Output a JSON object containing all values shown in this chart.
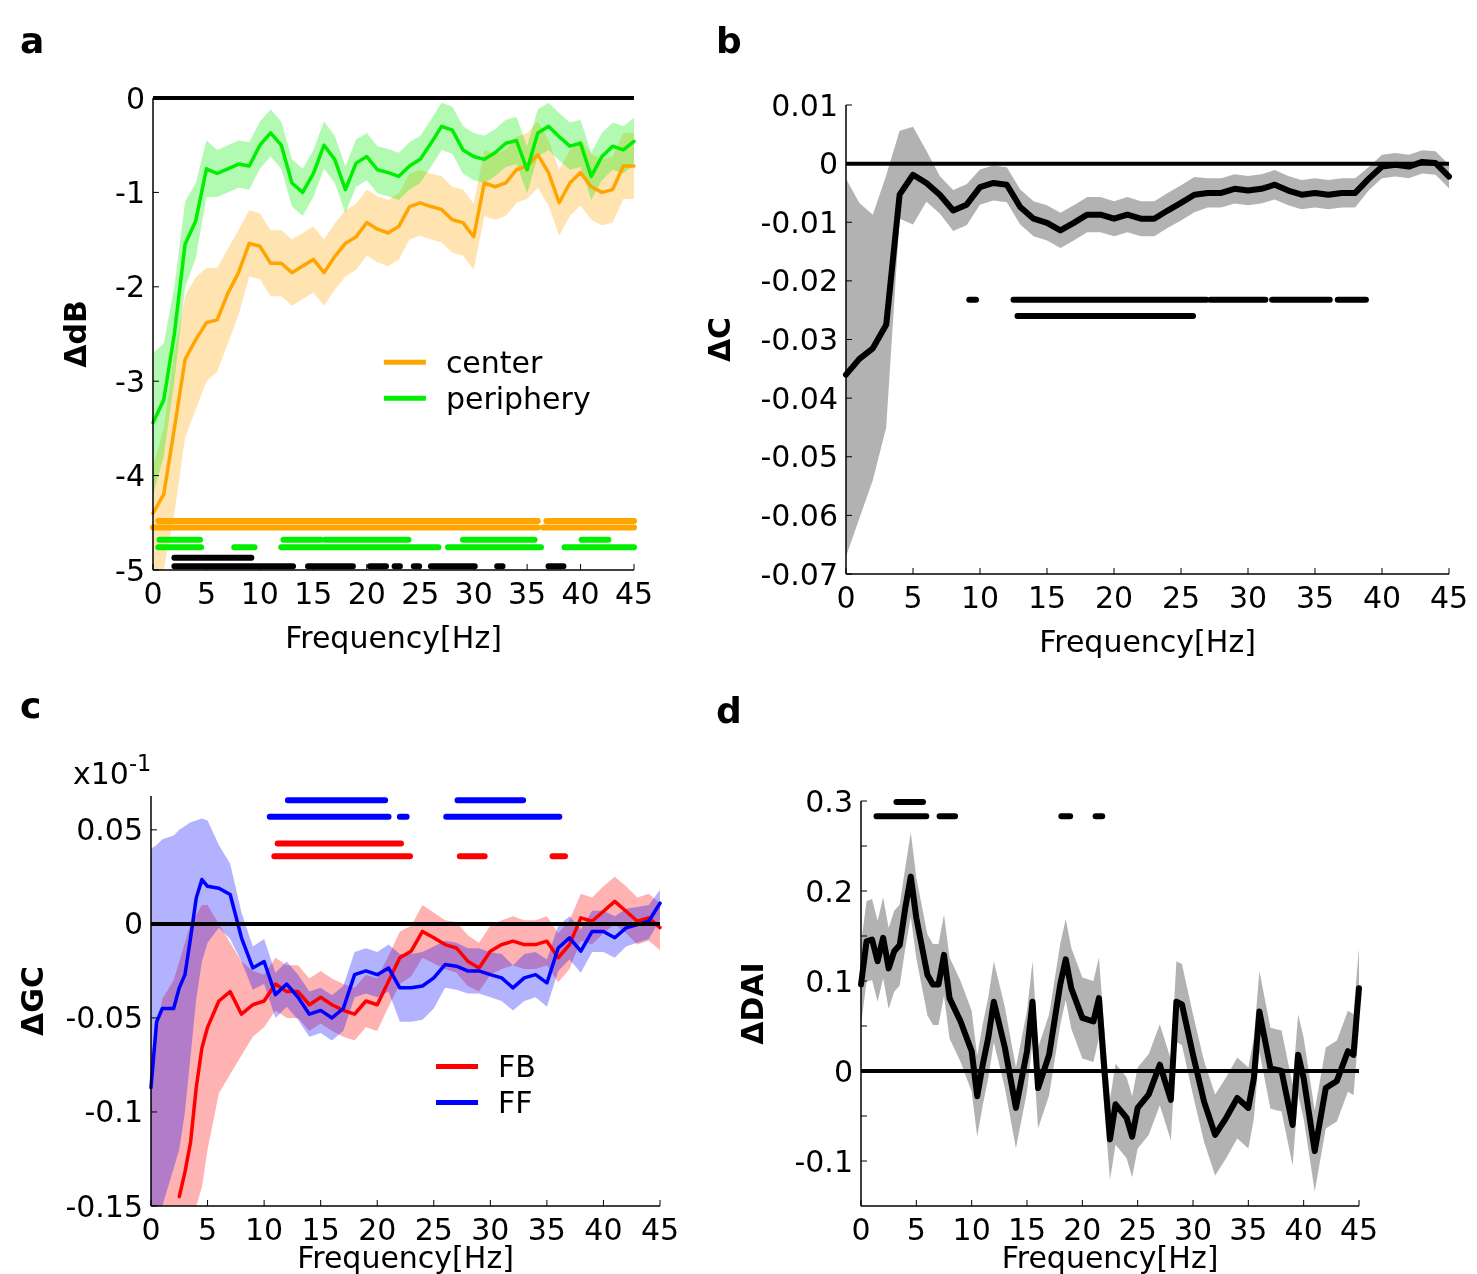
{
  "chart_data": [
    {
      "type": "line",
      "title": "a",
      "xlabel": "Frequency[Hz]",
      "ylabel": "ΔdB",
      "xlim": [
        0,
        45
      ],
      "ylim": [
        -5,
        0
      ],
      "xticks": [
        0,
        5,
        10,
        15,
        20,
        25,
        30,
        35,
        40,
        45
      ],
      "yticks": [
        0,
        -1,
        -2,
        -3,
        -4,
        -5
      ],
      "legend": "right",
      "ref_lines": [
        {
          "axis": "y",
          "value": 0,
          "color": "#000000"
        }
      ],
      "series": [
        {
          "name": "center",
          "color": "#ffa500",
          "x": [
            0,
            1,
            2,
            3,
            4,
            5,
            6,
            7,
            8,
            9,
            10,
            11,
            12,
            13,
            14,
            15,
            16,
            17,
            18,
            19,
            20,
            21,
            22,
            23,
            24,
            25,
            26,
            27,
            28,
            29,
            30,
            31,
            32,
            33,
            34,
            35,
            36,
            37,
            38,
            39,
            40,
            41,
            42,
            43,
            44,
            45
          ],
          "values": [
            -4.4,
            -4.2,
            -3.5,
            -2.77,
            -2.56,
            -2.38,
            -2.35,
            -2.07,
            -1.85,
            -1.54,
            -1.57,
            -1.75,
            -1.75,
            -1.85,
            -1.78,
            -1.71,
            -1.85,
            -1.68,
            -1.54,
            -1.47,
            -1.32,
            -1.39,
            -1.43,
            -1.36,
            -1.15,
            -1.11,
            -1.15,
            -1.18,
            -1.29,
            -1.32,
            -1.47,
            -0.9,
            -0.94,
            -0.9,
            -0.76,
            -0.72,
            -0.6,
            -0.79,
            -1.11,
            -0.9,
            -0.79,
            -0.94,
            -1.0,
            -0.97,
            -0.72,
            -0.72
          ],
          "lower": [
            -5,
            -5,
            -4.4,
            -3.6,
            -3.3,
            -3.0,
            -2.9,
            -2.6,
            -2.3,
            -1.89,
            -1.92,
            -2.1,
            -2.1,
            -2.2,
            -2.13,
            -2.06,
            -2.2,
            -2.03,
            -1.89,
            -1.82,
            -1.67,
            -1.74,
            -1.78,
            -1.71,
            -1.5,
            -1.46,
            -1.5,
            -1.53,
            -1.64,
            -1.67,
            -1.82,
            -1.25,
            -1.29,
            -1.25,
            -1.11,
            -1.07,
            -0.95,
            -1.14,
            -1.46,
            -1.25,
            -1.14,
            -1.29,
            -1.35,
            -1.32,
            -1.07,
            -1.07
          ],
          "upper": [
            -3.9,
            -3.5,
            -2.7,
            -2.1,
            -1.9,
            -1.8,
            -1.8,
            -1.6,
            -1.4,
            -1.19,
            -1.22,
            -1.4,
            -1.4,
            -1.5,
            -1.43,
            -1.36,
            -1.5,
            -1.33,
            -1.19,
            -1.12,
            -0.97,
            -1.04,
            -1.08,
            -1.01,
            -0.8,
            -0.76,
            -0.8,
            -0.83,
            -0.94,
            -0.97,
            -1.12,
            -0.55,
            -0.59,
            -0.55,
            -0.41,
            -0.37,
            -0.25,
            -0.44,
            -0.76,
            -0.55,
            -0.44,
            -0.59,
            -0.65,
            -0.62,
            -0.37,
            -0.37
          ]
        },
        {
          "name": "periphery",
          "color": "#00ee00",
          "x": [
            0,
            1,
            2,
            3,
            4,
            5,
            6,
            7,
            8,
            9,
            10,
            11,
            12,
            13,
            14,
            15,
            16,
            17,
            18,
            19,
            20,
            21,
            22,
            23,
            24,
            25,
            26,
            27,
            28,
            29,
            30,
            31,
            32,
            33,
            34,
            35,
            36,
            37,
            38,
            39,
            40,
            41,
            42,
            43,
            44,
            45
          ],
          "values": [
            -3.44,
            -3.2,
            -2.5,
            -1.55,
            -1.3,
            -0.75,
            -0.8,
            -0.75,
            -0.7,
            -0.72,
            -0.5,
            -0.37,
            -0.5,
            -0.9,
            -1.0,
            -0.8,
            -0.5,
            -0.65,
            -0.97,
            -0.69,
            -0.62,
            -0.76,
            -0.79,
            -0.83,
            -0.72,
            -0.65,
            -0.48,
            -0.3,
            -0.34,
            -0.55,
            -0.62,
            -0.65,
            -0.58,
            -0.48,
            -0.45,
            -0.76,
            -0.37,
            -0.3,
            -0.41,
            -0.51,
            -0.48,
            -0.83,
            -0.62,
            -0.51,
            -0.55,
            -0.46
          ],
          "lower": [
            -4.2,
            -3.8,
            -3.0,
            -2.0,
            -1.7,
            -1.05,
            -1.05,
            -1.0,
            -0.95,
            -0.97,
            -0.75,
            -0.62,
            -0.75,
            -1.15,
            -1.25,
            -1.05,
            -0.75,
            -0.9,
            -1.22,
            -0.94,
            -0.87,
            -1.01,
            -1.04,
            -1.08,
            -0.97,
            -0.9,
            -0.73,
            -0.55,
            -0.59,
            -0.8,
            -0.87,
            -0.9,
            -0.83,
            -0.73,
            -0.7,
            -1.01,
            -0.62,
            -0.55,
            -0.66,
            -0.76,
            -0.73,
            -1.08,
            -0.87,
            -0.76,
            -0.8,
            -0.71
          ],
          "upper": [
            -2.7,
            -2.6,
            -2.0,
            -1.1,
            -0.9,
            -0.45,
            -0.55,
            -0.5,
            -0.45,
            -0.47,
            -0.25,
            -0.12,
            -0.25,
            -0.65,
            -0.75,
            -0.55,
            -0.25,
            -0.4,
            -0.72,
            -0.44,
            -0.37,
            -0.51,
            -0.54,
            -0.58,
            -0.47,
            -0.4,
            -0.23,
            -0.05,
            -0.09,
            -0.3,
            -0.37,
            -0.4,
            -0.33,
            -0.23,
            -0.2,
            -0.51,
            -0.12,
            -0.05,
            -0.16,
            -0.26,
            -0.23,
            -0.58,
            -0.37,
            -0.26,
            -0.3,
            -0.21
          ]
        },
        {
          "color": "#ffa500",
          "x": [
            0.5,
            36,
            36.4,
            36.8,
            45
          ],
          "values": [
            -4.48,
            -4.48,
            null,
            -4.48,
            -4.48
          ]
        },
        {
          "color": "#ffa500",
          "x": [
            0,
            36,
            36.2,
            36.5,
            45
          ],
          "values": [
            -4.55,
            -4.55,
            null,
            -4.55,
            -4.55
          ]
        },
        {
          "color": "#00ee00",
          "x": [
            0.6,
            4.4,
            5,
            12.2,
            15.7,
            15.9,
            16.1,
            23.9,
            25,
            29,
            35.7,
            37,
            40.1,
            42.6
          ],
          "values": [
            -4.68,
            -4.68,
            null,
            -4.68,
            -4.68,
            null,
            -4.68,
            -4.68,
            null,
            -4.68,
            -4.68,
            null,
            -4.68,
            -4.68
          ]
        },
        {
          "color": "#00ee00",
          "x": [
            0.5,
            4.5,
            5,
            7.6,
            9.5,
            10,
            12,
            26.7,
            27,
            27.6,
            36.3,
            37,
            38.5,
            45
          ],
          "values": [
            -4.76,
            -4.76,
            null,
            -4.76,
            -4.76,
            null,
            -4.76,
            -4.76,
            null,
            -4.76,
            -4.76,
            null,
            -4.76,
            -4.76
          ]
        },
        {
          "color": "#000000",
          "x": [
            2,
            9.2
          ],
          "values": [
            -4.87,
            -4.87
          ]
        },
        {
          "color": "#000000",
          "x": [
            2,
            13.1,
            13.5,
            14.5,
            18.7,
            19,
            20.3,
            21.8,
            22,
            22.6,
            23.1,
            23.8,
            24.4,
            24.9,
            25.3,
            26,
            30.1,
            31,
            32.2,
            32.7,
            33.5,
            37,
            38.4
          ],
          "values": [
            -4.96,
            -4.96,
            null,
            -4.96,
            -4.96,
            null,
            -4.96,
            -4.96,
            null,
            -4.96,
            -4.96,
            null,
            -4.96,
            -4.96,
            null,
            -4.96,
            -4.96,
            null,
            -4.96,
            -4.96,
            null,
            -4.96,
            -4.96
          ]
        }
      ]
    },
    {
      "type": "line",
      "title": "b",
      "xlabel": "Frequency[Hz]",
      "ylabel": "ΔC",
      "xlim": [
        0,
        45
      ],
      "ylim": [
        -0.07,
        0.01
      ],
      "xticks": [
        0,
        5,
        10,
        15,
        20,
        25,
        30,
        35,
        40,
        45
      ],
      "yticks": [
        0.01,
        0,
        -0.01,
        -0.02,
        -0.03,
        -0.04,
        -0.05,
        -0.06,
        -0.07
      ],
      "ref_lines": [
        {
          "axis": "y",
          "value": 0,
          "color": "#000000"
        }
      ],
      "series": [
        {
          "color": "#000000",
          "x": [
            0,
            1,
            2,
            3,
            4,
            5,
            6,
            7,
            8,
            9,
            10,
            11,
            12,
            13,
            14,
            15,
            16,
            17,
            18,
            19,
            20,
            21,
            22,
            23,
            24,
            25,
            26,
            27,
            28,
            29,
            30,
            31,
            32,
            33,
            34,
            35,
            36,
            37,
            38,
            39,
            40,
            41,
            42,
            43,
            44,
            45
          ],
          "values": [
            -0.036,
            -0.0333,
            -0.0315,
            -0.0275,
            -0.0053,
            -0.0019,
            -0.0033,
            -0.0053,
            -0.008,
            -0.007,
            -0.004,
            -0.0033,
            -0.0036,
            -0.0074,
            -0.0094,
            -0.0101,
            -0.0114,
            -0.0101,
            -0.0087,
            -0.0087,
            -0.0094,
            -0.0087,
            -0.0094,
            -0.0094,
            -0.008,
            -0.0067,
            -0.0053,
            -0.005,
            -0.005,
            -0.0043,
            -0.0046,
            -0.0043,
            -0.0036,
            -0.0046,
            -0.0053,
            -0.005,
            -0.0053,
            -0.005,
            -0.005,
            -0.0026,
            -0.0005,
            -0.0002,
            -0.0005,
            0.0003,
            0.0001,
            -0.0022
          ],
          "lower": [
            -0.067,
            -0.0605,
            -0.054,
            -0.045,
            -0.0094,
            -0.0104,
            -0.0065,
            -0.0085,
            -0.0115,
            -0.0105,
            -0.007,
            -0.0063,
            -0.0066,
            -0.0104,
            -0.0124,
            -0.0131,
            -0.0144,
            -0.0131,
            -0.0117,
            -0.0117,
            -0.0124,
            -0.0117,
            -0.0124,
            -0.0124,
            -0.011,
            -0.0097,
            -0.0083,
            -0.0075,
            -0.0075,
            -0.0068,
            -0.0071,
            -0.0068,
            -0.0061,
            -0.0071,
            -0.0078,
            -0.0075,
            -0.0078,
            -0.0075,
            -0.0075,
            -0.0046,
            -0.0025,
            -0.0022,
            -0.0025,
            -0.0017,
            -0.0019,
            -0.0042
          ],
          "upper": [
            -0.0026,
            -0.0067,
            -0.0087,
            -0.002,
            0.0056,
            0.0063,
            0.0022,
            -0.0021,
            -0.0045,
            -0.0035,
            -0.001,
            -0.0003,
            -0.0006,
            -0.0044,
            -0.0064,
            -0.0071,
            -0.0084,
            -0.0071,
            -0.0057,
            -0.0057,
            -0.0064,
            -0.0057,
            -0.0064,
            -0.0064,
            -0.005,
            -0.0037,
            -0.0023,
            -0.0025,
            -0.0025,
            -0.0018,
            -0.0021,
            -0.0018,
            -0.0011,
            -0.0021,
            -0.0028,
            -0.0025,
            -0.0028,
            -0.0025,
            -0.0025,
            -0.0006,
            0.0015,
            0.0018,
            0.0015,
            0.0023,
            0.0021,
            -0.0002
          ]
        },
        {
          "color": "#000000",
          "x": [
            9.2,
            9.7,
            10,
            12.5,
            26.9,
            27,
            27.2,
            31.3,
            31.5,
            31.8,
            32.4,
            32.45,
            32.5,
            36.1,
            36.4,
            36.7,
            38.8
          ],
          "values": [
            -0.0232,
            -0.0232,
            null,
            -0.0232,
            -0.0232,
            null,
            -0.0232,
            -0.0232,
            null,
            -0.0232,
            -0.0232,
            null,
            -0.0232,
            -0.0232,
            null,
            -0.0232,
            -0.0232
          ]
        },
        {
          "color": "#000000",
          "x": [
            12.8,
            25.9
          ],
          "values": [
            -0.026,
            -0.026
          ]
        }
      ]
    },
    {
      "type": "line",
      "title": "c",
      "xlabel": "Frequency[Hz]",
      "ylabel": "ΔGC",
      "annotations": [
        "x10$^{-1}$"
      ],
      "xlim": [
        0,
        45
      ],
      "ylim": [
        -0.15,
        0.068
      ],
      "xticks": [
        0,
        5,
        10,
        15,
        20,
        25,
        30,
        35,
        40,
        45
      ],
      "yticks": [
        0.05,
        0,
        -0.05,
        -0.1,
        -0.15
      ],
      "legend": "bottom right",
      "ref_lines": [
        {
          "axis": "y",
          "value": 0,
          "color": "#000000"
        }
      ],
      "series": [
        {
          "name": "FB",
          "color": "#ff0000",
          "x": [
            0,
            1,
            2,
            2.5,
            3,
            3.5,
            4,
            4.5,
            5,
            6,
            7,
            8,
            9,
            10,
            11,
            12,
            13,
            14,
            15,
            16,
            17,
            18,
            19,
            20,
            21,
            22,
            23,
            24,
            25,
            26,
            27,
            28,
            29,
            30,
            31,
            32,
            33,
            34,
            35,
            36,
            37,
            38,
            39,
            40,
            41,
            42,
            43,
            44,
            45
          ],
          "values": [
            null,
            null,
            null,
            -0.145,
            -0.132,
            -0.116,
            -0.087,
            -0.066,
            -0.055,
            -0.041,
            -0.036,
            -0.048,
            -0.043,
            -0.041,
            -0.032,
            -0.036,
            -0.036,
            -0.043,
            -0.039,
            -0.043,
            -0.046,
            -0.048,
            -0.041,
            -0.043,
            -0.0305,
            -0.018,
            -0.0145,
            -0.004,
            -0.0074,
            -0.011,
            -0.0128,
            -0.0198,
            -0.0234,
            -0.0145,
            -0.011,
            -0.0092,
            -0.011,
            -0.011,
            -0.0092,
            -0.018,
            -0.011,
            0.0032,
            0.0014,
            0.0067,
            0.012,
            0.0067,
            0.0014,
            0.0032,
            -0.002
          ],
          "lower": [
            -0.15,
            -0.15,
            -0.15,
            -0.15,
            -0.15,
            -0.15,
            -0.15,
            -0.14,
            -0.12,
            -0.09,
            -0.08,
            -0.07,
            -0.06,
            -0.055,
            -0.046,
            -0.05,
            -0.05,
            -0.057,
            -0.053,
            -0.057,
            -0.06,
            -0.062,
            -0.055,
            -0.057,
            -0.044,
            -0.032,
            -0.028,
            -0.018,
            -0.021,
            -0.024,
            -0.026,
            -0.033,
            -0.036,
            -0.027,
            -0.024,
            -0.022,
            -0.024,
            -0.024,
            -0.022,
            -0.031,
            -0.024,
            -0.009,
            -0.011,
            -0.005,
            0.0,
            -0.005,
            -0.011,
            -0.009,
            -0.014
          ],
          "upper": [
            -0.07,
            -0.04,
            -0.03,
            -0.02,
            -0.01,
            0.0,
            0.005,
            0.01,
            0.01,
            0.0,
            -0.01,
            -0.02,
            -0.025,
            -0.027,
            -0.018,
            -0.022,
            -0.022,
            -0.029,
            -0.025,
            -0.029,
            -0.032,
            -0.034,
            -0.027,
            -0.029,
            -0.017,
            -0.004,
            -0.001,
            0.01,
            0.006,
            0.002,
            0.001,
            -0.006,
            -0.01,
            -0.001,
            0.002,
            0.004,
            0.002,
            0.002,
            0.004,
            -0.005,
            0.002,
            0.016,
            0.014,
            0.02,
            0.025,
            0.02,
            0.014,
            0.016,
            0.011
          ]
        },
        {
          "name": "FF",
          "color": "#0000ff",
          "x": [
            0,
            0.5,
            1,
            2,
            2.5,
            3,
            3.5,
            4,
            4.5,
            5,
            6,
            7,
            8,
            9,
            10,
            11,
            12,
            13,
            14,
            15,
            16,
            17,
            18,
            19,
            20,
            21,
            22,
            23,
            24,
            25,
            26,
            27,
            28,
            29,
            30,
            31,
            32,
            33,
            34,
            35,
            36,
            37,
            38,
            39,
            40,
            41,
            42,
            43,
            44,
            45
          ],
          "values": [
            -0.087,
            -0.052,
            -0.045,
            -0.045,
            -0.034,
            -0.027,
            -0.0074,
            0.0138,
            0.0236,
            0.02,
            0.019,
            0.0156,
            -0.0074,
            -0.0234,
            -0.02,
            -0.0376,
            -0.032,
            -0.039,
            -0.048,
            -0.046,
            -0.05,
            -0.045,
            -0.027,
            -0.025,
            -0.027,
            -0.0234,
            -0.034,
            -0.034,
            -0.033,
            -0.0287,
            -0.0216,
            -0.0225,
            -0.025,
            -0.025,
            -0.027,
            -0.0287,
            -0.034,
            -0.0287,
            -0.027,
            -0.0314,
            -0.0128,
            -0.0074,
            -0.0145,
            -0.004,
            -0.004,
            -0.0074,
            -0.0021,
            -0.0004,
            0.0014,
            0.011
          ],
          "lower": [
            -0.15,
            -0.15,
            -0.15,
            -0.13,
            -0.12,
            -0.1,
            -0.07,
            -0.04,
            -0.02,
            -0.01,
            -0.002,
            -0.008,
            -0.02,
            -0.035,
            -0.032,
            -0.05,
            -0.044,
            -0.051,
            -0.06,
            -0.058,
            -0.062,
            -0.057,
            -0.039,
            -0.037,
            -0.039,
            -0.036,
            -0.052,
            -0.052,
            -0.051,
            -0.045,
            -0.034,
            -0.035,
            -0.037,
            -0.037,
            -0.039,
            -0.041,
            -0.046,
            -0.041,
            -0.039,
            -0.044,
            -0.025,
            -0.019,
            -0.026,
            -0.015,
            -0.015,
            -0.018,
            -0.012,
            -0.01,
            -0.008,
            0.002
          ],
          "upper": [
            0.04,
            0.042,
            0.045,
            0.047,
            0.05,
            0.052,
            0.054,
            0.055,
            0.056,
            0.055,
            0.042,
            0.032,
            0.006,
            -0.012,
            -0.008,
            -0.026,
            -0.02,
            -0.027,
            -0.036,
            -0.034,
            -0.038,
            -0.033,
            -0.015,
            -0.013,
            -0.015,
            -0.011,
            -0.016,
            -0.016,
            -0.015,
            -0.012,
            -0.009,
            -0.01,
            -0.013,
            -0.013,
            -0.015,
            -0.016,
            -0.022,
            -0.016,
            -0.015,
            -0.019,
            -0.001,
            0.004,
            -0.003,
            0.007,
            0.007,
            0.004,
            0.008,
            0.009,
            0.01,
            0.018
          ]
        },
        {
          "color": "#0000ff",
          "x": [
            12.1,
            20.7,
            24,
            27.1,
            32.9
          ],
          "values": [
            0.0658,
            0.0658,
            null,
            0.0658,
            0.0658
          ]
        },
        {
          "color": "#0000ff",
          "x": [
            10.5,
            21,
            21.5,
            22.0,
            22.6,
            24,
            26.1,
            36.1
          ],
          "values": [
            0.057,
            0.057,
            null,
            0.057,
            0.057,
            null,
            0.057,
            0.057
          ]
        },
        {
          "color": "#ff0000",
          "x": [
            11.2,
            22.1
          ],
          "values": [
            0.0427,
            0.0427
          ]
        },
        {
          "color": "#ff0000",
          "x": [
            10.9,
            22.9,
            25,
            27.3,
            29.5,
            32,
            35.5,
            36.6
          ],
          "values": [
            0.036,
            0.036,
            null,
            0.036,
            0.036,
            null,
            0.036,
            0.036
          ]
        }
      ]
    },
    {
      "type": "line",
      "title": "d",
      "xlabel": "Frequency[Hz]",
      "ylabel": "ΔDAI",
      "xlim": [
        0,
        45
      ],
      "ylim": [
        -0.15,
        0.3
      ],
      "xticks": [
        0,
        5,
        10,
        15,
        20,
        25,
        30,
        35,
        40,
        45
      ],
      "yticks": [
        0.3,
        {
          "value": 0.25,
          "label": null
        },
        0.2,
        {
          "value": 0.15,
          "label": null
        },
        0.1,
        {
          "value": 0.05,
          "label": null
        },
        0,
        {
          "value": -0.05,
          "label": null
        },
        -0.1
      ],
      "ref_lines": [
        {
          "axis": "y",
          "value": 0,
          "color": "#000000"
        }
      ],
      "series": [
        {
          "color": "#000000",
          "x": [
            0,
            0.5,
            1,
            1.5,
            2,
            2.5,
            3,
            3.5,
            4,
            4.5,
            5,
            6,
            6.5,
            7,
            7.5,
            8,
            9,
            10,
            10.5,
            11,
            11.5,
            12,
            13,
            14,
            15,
            15.5,
            16,
            17,
            18,
            18.5,
            19,
            20,
            21,
            21.5,
            22,
            22.5,
            23,
            24,
            24.5,
            25,
            26,
            27,
            28,
            28.5,
            29,
            30,
            31,
            32,
            33,
            34,
            35,
            35.5,
            36,
            37,
            38,
            39,
            39.5,
            40,
            41,
            42,
            43,
            44,
            44.5,
            45
          ],
          "values": [
            0.096,
            0.144,
            0.146,
            0.122,
            0.148,
            0.114,
            0.133,
            0.14,
            0.181,
            0.216,
            0.17,
            0.107,
            0.096,
            0.096,
            0.129,
            0.081,
            0.055,
            0.022,
            -0.028,
            0.007,
            0.037,
            0.077,
            0.026,
            -0.041,
            0.022,
            0.077,
            -0.019,
            0.018,
            0.096,
            0.124,
            0.092,
            0.059,
            0.055,
            0.081,
            0.0,
            -0.076,
            -0.037,
            -0.052,
            -0.073,
            -0.041,
            -0.026,
            0.007,
            -0.032,
            0.077,
            0.074,
            0.018,
            -0.034,
            -0.071,
            -0.052,
            -0.03,
            -0.041,
            -0.008,
            0.066,
            0.003,
            0.0,
            -0.06,
            0.018,
            -0.008,
            -0.089,
            -0.019,
            -0.011,
            0.022,
            0.018,
            0.092
          ],
          "lower": [
            0.051,
            0.099,
            0.101,
            0.077,
            0.103,
            0.069,
            0.088,
            0.095,
            0.136,
            0.171,
            0.125,
            0.062,
            0.051,
            0.051,
            0.084,
            0.036,
            0.01,
            -0.023,
            -0.073,
            -0.038,
            -0.008,
            0.032,
            -0.019,
            -0.086,
            -0.023,
            0.032,
            -0.064,
            -0.027,
            0.051,
            0.079,
            0.047,
            0.014,
            0.01,
            0.036,
            -0.045,
            -0.121,
            -0.082,
            -0.097,
            -0.118,
            -0.086,
            -0.071,
            -0.038,
            -0.077,
            0.032,
            0.029,
            -0.027,
            -0.079,
            -0.116,
            -0.097,
            -0.075,
            -0.086,
            -0.053,
            0.021,
            -0.042,
            -0.045,
            -0.105,
            -0.027,
            -0.053,
            -0.134,
            -0.064,
            -0.056,
            -0.023,
            -0.027,
            0.047
          ],
          "upper": [
            0.141,
            0.189,
            0.191,
            0.167,
            0.193,
            0.159,
            0.178,
            0.185,
            0.226,
            0.265,
            0.215,
            0.152,
            0.141,
            0.141,
            0.174,
            0.126,
            0.1,
            0.067,
            0.017,
            0.052,
            0.082,
            0.122,
            0.071,
            0.004,
            0.067,
            0.122,
            0.026,
            0.063,
            0.141,
            0.169,
            0.137,
            0.104,
            0.1,
            0.126,
            0.045,
            -0.031,
            0.008,
            -0.007,
            -0.028,
            0.004,
            0.019,
            0.052,
            0.013,
            0.122,
            0.119,
            0.063,
            0.011,
            -0.026,
            -0.007,
            0.015,
            0.004,
            0.037,
            0.111,
            0.048,
            0.045,
            -0.015,
            0.063,
            0.037,
            -0.044,
            0.026,
            0.034,
            0.067,
            0.063,
            0.137
          ]
        },
        {
          "color": "#000000",
          "x": [
            3.2,
            5.6
          ],
          "values": [
            0.299,
            0.299
          ]
        },
        {
          "color": "#000000",
          "x": [
            1.4,
            5.9,
            6.5,
            7.1,
            8.5,
            12,
            18.1,
            18.9,
            20,
            21.2,
            21.8
          ],
          "values": [
            0.283,
            0.283,
            null,
            0.283,
            0.283,
            null,
            0.283,
            0.283,
            null,
            0.283,
            0.283
          ]
        }
      ]
    }
  ]
}
